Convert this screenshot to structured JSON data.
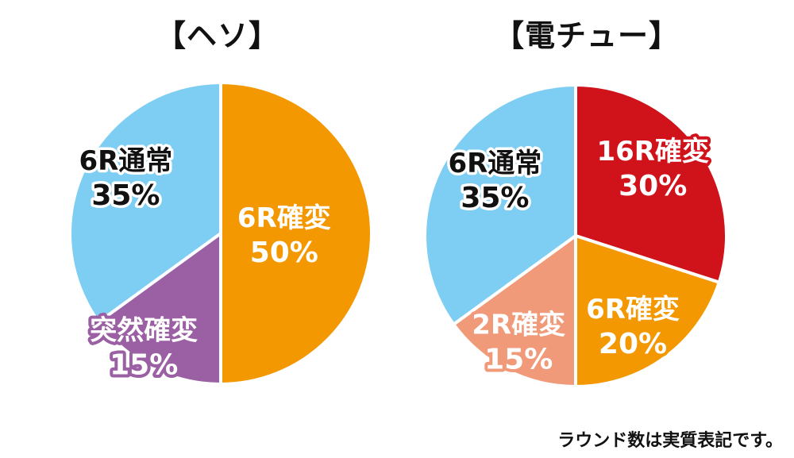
{
  "chart_data": [
    {
      "type": "pie",
      "title": "【ヘソ】",
      "slices": [
        {
          "name": "6R確変",
          "pct_label": "50%",
          "value": 50,
          "color": "#F39800",
          "text_color": "#FFFFFF",
          "outline_color": "#F39800"
        },
        {
          "name": "突然確変",
          "pct_label": "15%",
          "value": 15,
          "color": "#9B5FA4",
          "text_color": "#FFFFFF",
          "outline_color": "#9B5FA4"
        },
        {
          "name": "6R通常",
          "pct_label": "35%",
          "value": 35,
          "color": "#7ECEF4",
          "text_color": "#111111",
          "outline_color": "#7ECEF4"
        }
      ]
    },
    {
      "type": "pie",
      "title": "【電チュー】",
      "slices": [
        {
          "name": "16R確変",
          "pct_label": "30%",
          "value": 30,
          "color": "#D0121B",
          "text_color": "#FFFFFF",
          "outline_color": "#D0121B"
        },
        {
          "name": "6R確変",
          "pct_label": "20%",
          "value": 20,
          "color": "#F39800",
          "text_color": "#FFFFFF",
          "outline_color": "#F39800"
        },
        {
          "name": "2R確変",
          "pct_label": "15%",
          "value": 15,
          "color": "#F19A79",
          "text_color": "#FFFFFF",
          "outline_color": "#F19A79"
        },
        {
          "name": "6R通常",
          "pct_label": "35%",
          "value": 35,
          "color": "#7ECEF4",
          "text_color": "#111111",
          "outline_color": "#7ECEF4"
        }
      ]
    }
  ],
  "footnote": "ラウンド数は実質表記です。"
}
